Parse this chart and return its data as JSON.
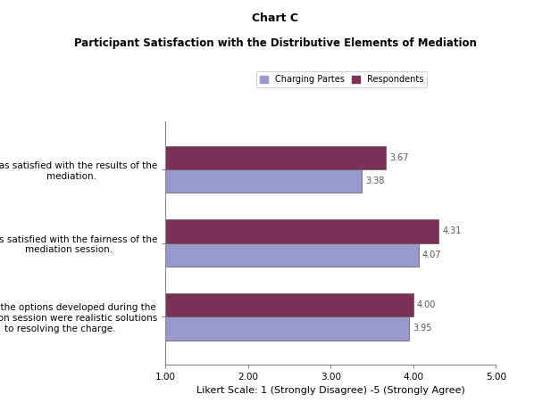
{
  "title_line1": "Chart C",
  "title_line2": "Participant Satisfaction with the Distributive Elements of Mediation",
  "categories": [
    "Most of the options developed during the\nmediation session were realistic solutions\nto resolving the charge.",
    "I was satisfied with the fairness of the\nmediation session.",
    "I was satisfied with the results of the\nmediation."
  ],
  "respondents_values": [
    4.0,
    4.31,
    3.67
  ],
  "charging_values": [
    3.95,
    4.07,
    3.38
  ],
  "respondents_color": "#7B3055",
  "charging_color": "#9999CC",
  "bar_height": 0.32,
  "xlim": [
    1.0,
    5.0
  ],
  "xticks": [
    1.0,
    2.0,
    3.0,
    4.0,
    5.0
  ],
  "xlabel": "Likert Scale: 1 (Strongly Disagree) -5 (Strongly Agree)",
  "legend_labels": [
    "Charging Partes",
    "Respondents"
  ],
  "background_color": "#ffffff",
  "value_label_fontsize": 7,
  "axis_label_fontsize": 8,
  "tick_label_fontsize": 7.5
}
